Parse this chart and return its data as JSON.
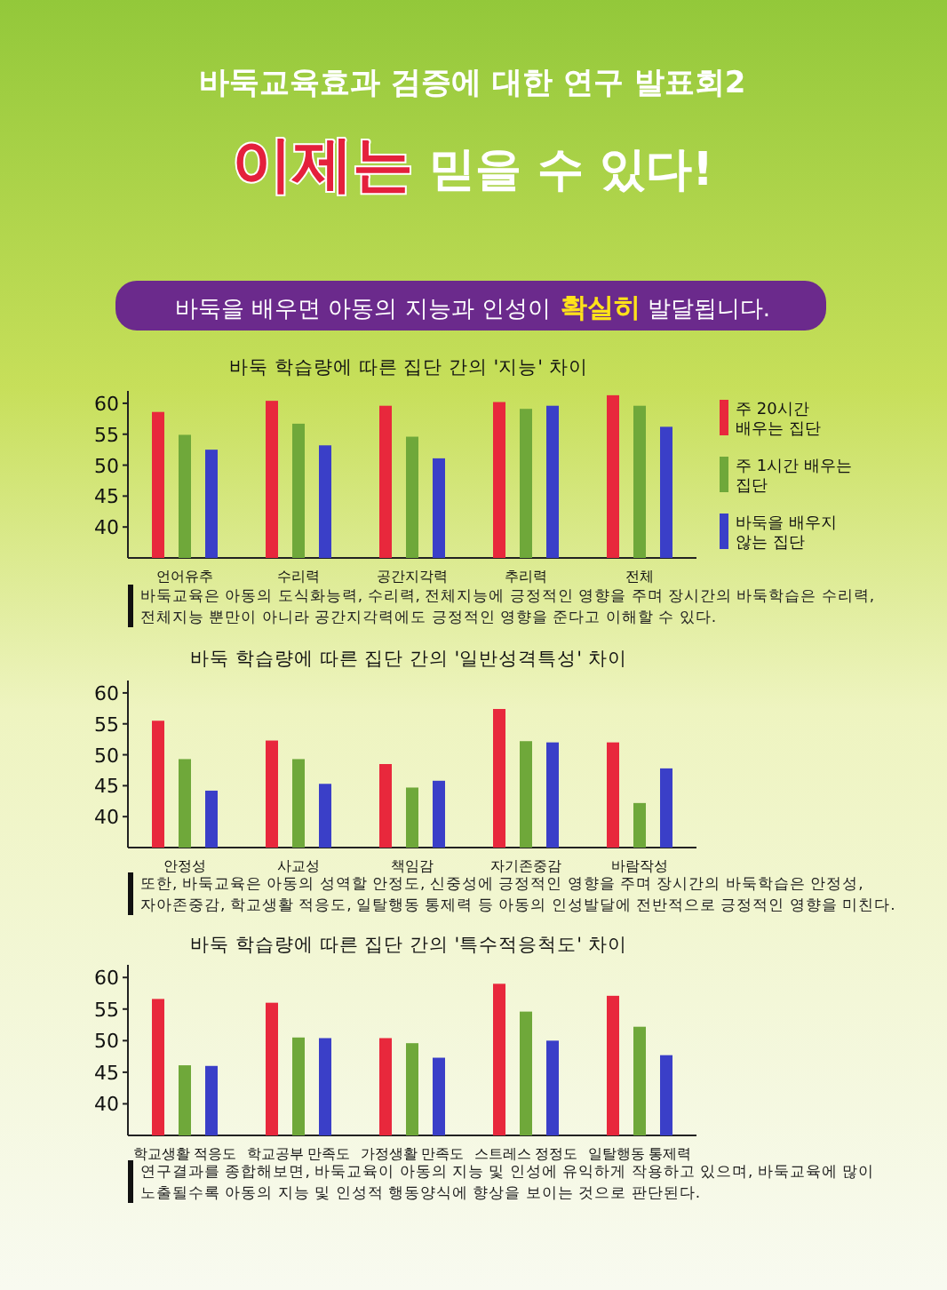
{
  "chart_data": [
    {
      "type": "bar",
      "title": "바둑 학습량에 따른 집단 간의 '지능' 차이",
      "categories": [
        "언어유추",
        "수리력",
        "공간지각력",
        "추리력",
        "전체"
      ],
      "series": [
        {
          "name": "주 20시간 배우는 집단",
          "color": "#e8283c",
          "values": [
            58.6,
            60.4,
            59.6,
            60.2,
            61.3
          ]
        },
        {
          "name": "주 1시간 배우는 집단",
          "color": "#6fa83a",
          "values": [
            54.9,
            56.7,
            54.6,
            59.1,
            59.6
          ]
        },
        {
          "name": "바둑을 배우지 않는 집단",
          "color": "#3a3fc8",
          "values": [
            52.5,
            53.2,
            51.1,
            59.6,
            56.2
          ]
        }
      ],
      "ylim": [
        35,
        62
      ],
      "yticks": [
        40,
        45,
        50,
        55,
        60
      ],
      "legend": "right",
      "annotations": [
        "바둑교육효과 검증에 대한 연구 발표회2",
        "이제는 믿을 수 있다!",
        "바둑을 배우면 아동의 지능과 인성이 확실히 발달됩니다.",
        "바둑교육은 아동의 도식화능력, 수리력, 전체지능에 긍정적인 영향을 주며 장시간의 바둑학습은 수리력, 전체지능 뿐만이 아니라 공간지각력에도 긍정적인 영향을 준다고 이해할 수 있다."
      ]
    },
    {
      "type": "bar",
      "title": "바둑 학습량에 따른 집단 간의 '일반성격특성' 차이",
      "categories": [
        "안정성",
        "사교성",
        "책임감",
        "자기존중감",
        "바람작성"
      ],
      "series": [
        {
          "color": "#e8283c",
          "values": [
            55.5,
            52.3,
            48.5,
            57.4,
            52.0
          ]
        },
        {
          "color": "#6fa83a",
          "values": [
            49.3,
            49.3,
            44.7,
            52.2,
            42.2
          ]
        },
        {
          "color": "#3a3fc8",
          "values": [
            44.2,
            45.3,
            45.8,
            52.0,
            47.8
          ]
        }
      ],
      "ylim": [
        35,
        62
      ],
      "yticks": [
        40,
        45,
        50,
        55,
        60
      ],
      "annotations": [
        "또한, 바둑교육은 아동의 성역할 안정도, 신중성에 긍정적인 영향을 주며 장시간의 바둑학습은 안정성, 자아존중감, 학교생활 적응도, 일탈행동 통제력 등 아동의 인성발달에 전반적으로 긍정적인 영향을 미친다."
      ]
    },
    {
      "type": "bar",
      "title": "바둑 학습량에 따른 집단 간의 '특수적응척도' 차이",
      "categories": [
        "학교생활 적응도",
        "학교공부 만족도",
        "가정생활 만족도",
        "스트레스 정정도",
        "일탈행동 통제력"
      ],
      "series": [
        {
          "color": "#e8283c",
          "values": [
            56.6,
            56.0,
            50.4,
            59.0,
            57.1
          ]
        },
        {
          "color": "#6fa83a",
          "values": [
            46.1,
            50.5,
            49.6,
            54.6,
            52.2
          ]
        },
        {
          "color": "#3a3fc8",
          "values": [
            46.0,
            50.4,
            47.3,
            50.0,
            47.7
          ]
        }
      ],
      "ylim": [
        35,
        62
      ],
      "yticks": [
        40,
        45,
        50,
        55,
        60
      ],
      "annotations": [
        "연구결과를 종합해보면, 바둑교육이 아동의 지능 및 인성에 유익하게 작용하고 있으며, 바둑교육에 많이 노출될수록 아동의 지능 및 인성적 행동양식에 향상을 보이는 것으로 판단된다."
      ]
    }
  ]
}
